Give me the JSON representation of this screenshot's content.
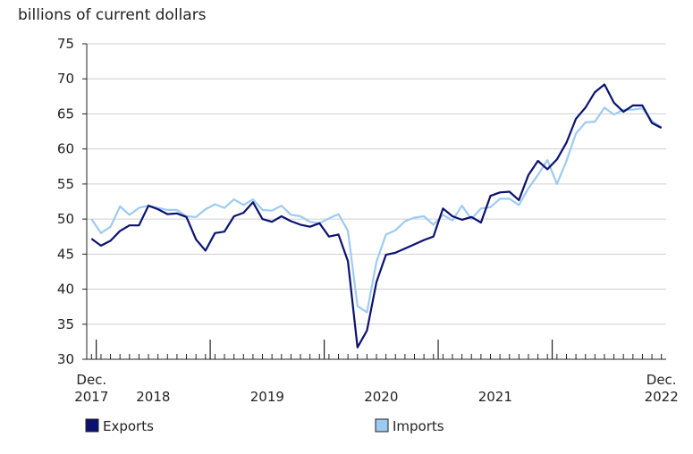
{
  "chart_data": {
    "type": "line",
    "ylabel": "billions of current dollars",
    "ylim": [
      30,
      75
    ],
    "yticks": [
      30,
      35,
      40,
      45,
      50,
      55,
      60,
      65,
      70,
      75
    ],
    "x_start": "Dec. 2017",
    "x_end": "Dec. 2022",
    "x_year_labels": [
      {
        "line1": "Dec.",
        "line2": "2017"
      },
      {
        "line1": "",
        "line2": "2018"
      },
      {
        "line1": "",
        "line2": "2019"
      },
      {
        "line1": "",
        "line2": "2020"
      },
      {
        "line1": "",
        "line2": "2021"
      },
      {
        "line1": "Dec.",
        "line2": "2022"
      }
    ],
    "grid": "horizontal",
    "legend_position": "bottom",
    "series": [
      {
        "name": "Exports",
        "color": "#0b1170",
        "values": [
          47.2,
          46.2,
          46.9,
          48.3,
          49.1,
          49.1,
          51.9,
          51.4,
          50.7,
          50.8,
          50.3,
          47.1,
          45.5,
          48.0,
          48.2,
          50.4,
          50.9,
          52.4,
          50.0,
          49.6,
          50.4,
          49.7,
          49.2,
          48.9,
          49.4,
          47.5,
          47.8,
          44.0,
          31.7,
          34.1,
          41.0,
          44.9,
          45.2,
          45.8,
          46.4,
          47.0,
          47.5,
          51.5,
          50.4,
          49.9,
          50.3,
          49.5,
          53.3,
          53.8,
          53.9,
          52.7,
          56.3,
          58.3,
          57.1,
          58.5,
          60.9,
          64.3,
          65.9,
          68.1,
          69.2,
          66.6,
          65.3,
          66.2,
          66.2,
          63.7,
          63.0
        ]
      },
      {
        "name": "Imports",
        "color": "#9dcbf0",
        "values": [
          50.0,
          48.0,
          48.9,
          51.8,
          50.6,
          51.6,
          51.9,
          51.6,
          51.3,
          51.3,
          50.4,
          50.3,
          51.4,
          52.1,
          51.6,
          52.8,
          52.0,
          52.8,
          51.3,
          51.2,
          51.9,
          50.6,
          50.4,
          49.6,
          49.4,
          50.1,
          50.7,
          48.3,
          37.6,
          36.7,
          43.9,
          47.8,
          48.4,
          49.7,
          50.2,
          50.4,
          49.2,
          50.6,
          49.8,
          51.9,
          50.0,
          51.5,
          51.7,
          52.9,
          52.9,
          52.0,
          54.4,
          56.3,
          58.4,
          55.0,
          58.3,
          62.2,
          63.8,
          63.9,
          65.9,
          64.9,
          65.6,
          65.6,
          65.8,
          64.0,
          63.1
        ]
      }
    ]
  }
}
